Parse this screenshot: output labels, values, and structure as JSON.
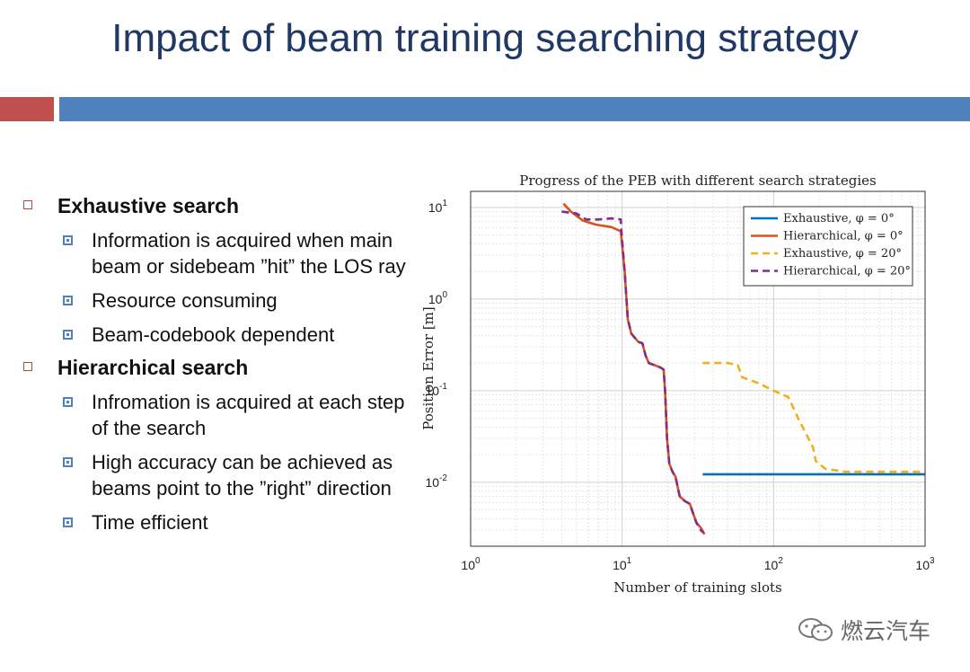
{
  "slide": {
    "title": "Impact of beam training searching strategy",
    "watermark": "燃云汽车",
    "bullets": [
      {
        "label": "Exhaustive search",
        "sub": [
          "Information is acquired when main beam or sidebeam ”hit” the LOS ray",
          "Resource consuming",
          "Beam-codebook dependent"
        ]
      },
      {
        "label": "Hierarchical search",
        "sub": [
          "Infromation is acquired at each step of the search",
          "High accuracy can be achieved as beams point to the ”right” direction",
          "Time efficient"
        ]
      }
    ]
  },
  "chart_data": {
    "type": "line",
    "title": "Progress of the PEB with different search strategies",
    "xlabel": "Number of training slots",
    "ylabel": "Position Error [m]",
    "xscale": "log",
    "yscale": "log",
    "xlim": [
      1,
      1000
    ],
    "ylim": [
      0.002,
      15
    ],
    "grid": true,
    "legend_position": "top-right",
    "x_ticks": [
      {
        "base": "10",
        "exp": "0",
        "value": 1
      },
      {
        "base": "10",
        "exp": "1",
        "value": 10
      },
      {
        "base": "10",
        "exp": "2",
        "value": 100
      },
      {
        "base": "10",
        "exp": "3",
        "value": 1000
      }
    ],
    "y_ticks": [
      {
        "base": "10",
        "exp": "1",
        "value": 10
      },
      {
        "base": "10",
        "exp": "0",
        "value": 1
      },
      {
        "base": "10",
        "exp": "-1",
        "value": 0.1
      },
      {
        "base": "10",
        "exp": "-2",
        "value": 0.01
      }
    ],
    "series": [
      {
        "name": "Exhaustive, φ = 0°",
        "color": "#0072bd",
        "dash": "solid",
        "points": [
          [
            34,
            0.0122
          ],
          [
            1000,
            0.0122
          ]
        ]
      },
      {
        "name": "Hierarchical, φ = 0°",
        "color": "#d95319",
        "dash": "solid",
        "points": [
          [
            4.1,
            11
          ],
          [
            4.6,
            9.0
          ],
          [
            5.5,
            7.2
          ],
          [
            6.7,
            6.5
          ],
          [
            8.5,
            6.1
          ],
          [
            9.8,
            5.5
          ],
          [
            10.4,
            2.0
          ],
          [
            10.9,
            0.6
          ],
          [
            11.5,
            0.42
          ],
          [
            12.8,
            0.34
          ],
          [
            13.6,
            0.33
          ],
          [
            14.3,
            0.24
          ],
          [
            15.0,
            0.2
          ],
          [
            16.3,
            0.19
          ],
          [
            17.8,
            0.18
          ],
          [
            18.8,
            0.17
          ],
          [
            19.2,
            0.1
          ],
          [
            19.8,
            0.03
          ],
          [
            20.5,
            0.016
          ],
          [
            21.5,
            0.013
          ],
          [
            22.5,
            0.0115
          ],
          [
            24.0,
            0.007
          ],
          [
            26.0,
            0.0062
          ],
          [
            28.0,
            0.0058
          ],
          [
            29.5,
            0.0045
          ],
          [
            31.0,
            0.0036
          ],
          [
            33.0,
            0.0032
          ],
          [
            35.0,
            0.0027
          ]
        ]
      },
      {
        "name": "Exhaustive, φ = 20°",
        "color": "#edb120",
        "dash": "dashed",
        "points": [
          [
            34,
            0.2
          ],
          [
            50,
            0.2
          ],
          [
            58,
            0.19
          ],
          [
            62,
            0.14
          ],
          [
            80,
            0.12
          ],
          [
            100,
            0.1
          ],
          [
            125,
            0.085
          ],
          [
            145,
            0.05
          ],
          [
            170,
            0.03
          ],
          [
            182,
            0.024
          ],
          [
            190,
            0.017
          ],
          [
            220,
            0.014
          ],
          [
            300,
            0.013
          ],
          [
            500,
            0.013
          ],
          [
            1000,
            0.013
          ]
        ]
      },
      {
        "name": "Hierarchical, φ = 20°",
        "color": "#7e2f8e",
        "dash": "dashed",
        "points": [
          [
            4.0,
            9.0
          ],
          [
            5.0,
            8.6
          ],
          [
            5.8,
            7.4
          ],
          [
            7.0,
            7.4
          ],
          [
            8.5,
            7.6
          ],
          [
            9.8,
            7.4
          ],
          [
            9.9,
            5.5
          ],
          [
            10.4,
            2.0
          ],
          [
            10.9,
            0.6
          ],
          [
            11.5,
            0.42
          ],
          [
            12.8,
            0.34
          ],
          [
            13.6,
            0.33
          ],
          [
            14.3,
            0.24
          ],
          [
            15.0,
            0.2
          ],
          [
            16.3,
            0.19
          ],
          [
            17.8,
            0.18
          ],
          [
            18.8,
            0.17
          ],
          [
            19.2,
            0.1
          ],
          [
            19.8,
            0.03
          ],
          [
            20.5,
            0.016
          ],
          [
            21.5,
            0.013
          ],
          [
            22.5,
            0.0115
          ],
          [
            24.0,
            0.007
          ],
          [
            26.0,
            0.0062
          ],
          [
            28.0,
            0.0058
          ],
          [
            29.5,
            0.0045
          ],
          [
            31.0,
            0.0036
          ],
          [
            33.0,
            0.003
          ],
          [
            34.5,
            0.0028
          ]
        ]
      }
    ]
  }
}
